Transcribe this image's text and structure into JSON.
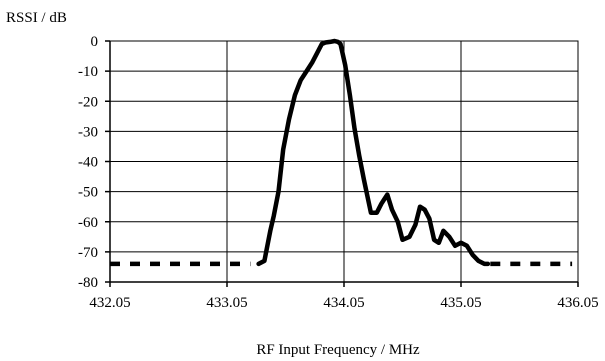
{
  "chart_data": {
    "type": "line",
    "title": "",
    "xlabel": "RF Input Frequency / MHz",
    "ylabel": "RSSI / dB",
    "xlim": [
      432.05,
      436.05
    ],
    "ylim": [
      -80,
      0
    ],
    "x_ticks": [
      "432.05",
      "433.05",
      "434.05",
      "435.05",
      "436.05"
    ],
    "y_ticks": [
      "0",
      "-10",
      "-20",
      "-30",
      "-40",
      "-50",
      "-60",
      "-70",
      "-80"
    ],
    "grid": true,
    "series": [
      {
        "style": "solid",
        "x": [
          433.32,
          433.37,
          433.42,
          433.45,
          433.49,
          433.53,
          433.58,
          433.63,
          433.68,
          433.73,
          433.78,
          433.82,
          433.86,
          433.89,
          433.93,
          433.97,
          434.0,
          434.02,
          434.06,
          434.1,
          434.14,
          434.18,
          434.22,
          434.28,
          434.33,
          434.37,
          434.42,
          434.46,
          434.51,
          434.55,
          434.61,
          434.66,
          434.7,
          434.74,
          434.78,
          434.82,
          434.86,
          434.9,
          434.95,
          435.0,
          435.05,
          435.1,
          435.15,
          435.2,
          435.25,
          435.28
        ],
        "y": [
          -74,
          -73,
          -63,
          -58,
          -50,
          -36,
          -26,
          -18,
          -13,
          -10,
          -7,
          -4,
          -1,
          -0.5,
          -0.3,
          0,
          -0.3,
          -1,
          -8,
          -18,
          -29,
          -38,
          -46,
          -57,
          -57,
          -54,
          -51,
          -56,
          -60,
          -66,
          -65,
          -61,
          -55,
          -56,
          -59,
          -66,
          -67,
          -63,
          -65,
          -68,
          -67,
          -68,
          -71,
          -73,
          -74,
          -74
        ]
      },
      {
        "style": "dashed",
        "x": [
          432.05,
          433.25
        ],
        "y": [
          -74,
          -74
        ]
      },
      {
        "style": "dashed",
        "x": [
          435.3,
          436.0
        ],
        "y": [
          -74,
          -74
        ]
      }
    ]
  }
}
